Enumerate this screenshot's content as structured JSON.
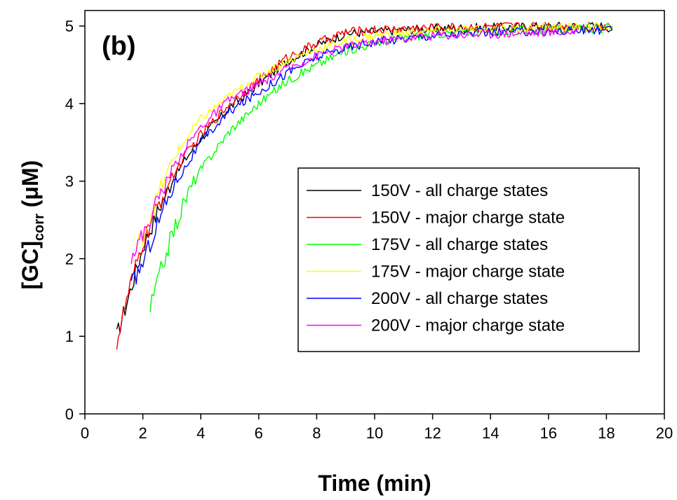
{
  "chart_data": {
    "type": "line",
    "panel_label": "(b)",
    "xlabel": "Time (min)",
    "ylabel_main": "[GC]",
    "ylabel_sub": "corr",
    "ylabel_unit": " (μM)",
    "xlim": [
      0,
      20
    ],
    "ylim": [
      0,
      5.2
    ],
    "x_ticks": [
      "0",
      "2",
      "4",
      "6",
      "8",
      "10",
      "12",
      "14",
      "16",
      "18",
      "20"
    ],
    "y_ticks": [
      "0",
      "1",
      "2",
      "3",
      "4",
      "5"
    ],
    "legend_position": "center-right",
    "series": [
      {
        "name": "150V - all charge states",
        "color": "#000000",
        "points": [
          [
            1.1,
            1.0
          ],
          [
            1.5,
            1.5
          ],
          [
            2,
            2.15
          ],
          [
            2.5,
            2.6
          ],
          [
            3,
            3.0
          ],
          [
            3.5,
            3.3
          ],
          [
            4,
            3.55
          ],
          [
            5,
            3.95
          ],
          [
            6,
            4.25
          ],
          [
            7,
            4.55
          ],
          [
            8,
            4.75
          ],
          [
            9,
            4.9
          ],
          [
            10,
            4.93
          ],
          [
            12,
            4.97
          ],
          [
            14,
            4.98
          ],
          [
            16,
            5.0
          ],
          [
            18,
            5.0
          ],
          [
            18.2,
            4.95
          ]
        ]
      },
      {
        "name": "150V - major charge state",
        "color": "#ff0000",
        "points": [
          [
            1.1,
            0.92
          ],
          [
            1.5,
            1.55
          ],
          [
            2,
            2.2
          ],
          [
            2.5,
            2.65
          ],
          [
            3,
            3.05
          ],
          [
            3.5,
            3.35
          ],
          [
            4,
            3.6
          ],
          [
            5,
            4.0
          ],
          [
            6,
            4.3
          ],
          [
            7,
            4.6
          ],
          [
            8,
            4.78
          ],
          [
            9,
            4.92
          ],
          [
            10,
            4.95
          ],
          [
            12,
            4.98
          ],
          [
            14,
            4.99
          ],
          [
            16,
            5.0
          ],
          [
            18,
            4.98
          ],
          [
            18.2,
            4.97
          ]
        ]
      },
      {
        "name": "175V - all charge states",
        "color": "#00ff00",
        "points": [
          [
            2.25,
            1.35
          ],
          [
            2.5,
            1.7
          ],
          [
            3,
            2.3
          ],
          [
            3.5,
            2.8
          ],
          [
            4,
            3.15
          ],
          [
            5,
            3.65
          ],
          [
            6,
            4.0
          ],
          [
            7,
            4.3
          ],
          [
            8,
            4.5
          ],
          [
            9,
            4.68
          ],
          [
            10,
            4.78
          ],
          [
            11,
            4.85
          ],
          [
            12,
            4.9
          ],
          [
            14,
            4.93
          ],
          [
            16,
            4.95
          ],
          [
            18,
            4.97
          ],
          [
            18.2,
            5.0
          ]
        ]
      },
      {
        "name": "175V - major charge state",
        "color": "#ffff00",
        "points": [
          [
            1.7,
            2.1
          ],
          [
            2,
            2.3
          ],
          [
            2.5,
            2.8
          ],
          [
            3,
            3.25
          ],
          [
            3.5,
            3.55
          ],
          [
            4,
            3.8
          ],
          [
            5,
            4.1
          ],
          [
            6,
            4.35
          ],
          [
            7,
            4.55
          ],
          [
            8,
            4.7
          ],
          [
            9,
            4.8
          ],
          [
            10,
            4.88
          ],
          [
            12,
            4.93
          ],
          [
            14,
            4.96
          ],
          [
            16,
            4.98
          ],
          [
            18,
            4.98
          ],
          [
            18.2,
            4.97
          ]
        ]
      },
      {
        "name": "200V - all charge states",
        "color": "#0000ff",
        "points": [
          [
            1.6,
            1.65
          ],
          [
            2,
            1.95
          ],
          [
            2.5,
            2.45
          ],
          [
            3,
            2.9
          ],
          [
            3.5,
            3.2
          ],
          [
            4,
            3.5
          ],
          [
            5,
            3.9
          ],
          [
            6,
            4.15
          ],
          [
            7,
            4.4
          ],
          [
            8,
            4.6
          ],
          [
            9,
            4.72
          ],
          [
            10,
            4.8
          ],
          [
            12,
            4.88
          ],
          [
            14,
            4.92
          ],
          [
            16,
            4.93
          ],
          [
            18,
            4.95
          ],
          [
            18.2,
            4.95
          ]
        ]
      },
      {
        "name": "200V - major charge state",
        "color": "#ff00ff",
        "points": [
          [
            1.6,
            2.05
          ],
          [
            2,
            2.3
          ],
          [
            2.5,
            2.75
          ],
          [
            3,
            3.15
          ],
          [
            3.5,
            3.45
          ],
          [
            4,
            3.7
          ],
          [
            5,
            4.05
          ],
          [
            6,
            4.25
          ],
          [
            7,
            4.45
          ],
          [
            8,
            4.62
          ],
          [
            9,
            4.73
          ],
          [
            10,
            4.8
          ],
          [
            12,
            4.88
          ],
          [
            14,
            4.9
          ],
          [
            16,
            4.92
          ],
          [
            17,
            4.93
          ]
        ]
      }
    ]
  }
}
